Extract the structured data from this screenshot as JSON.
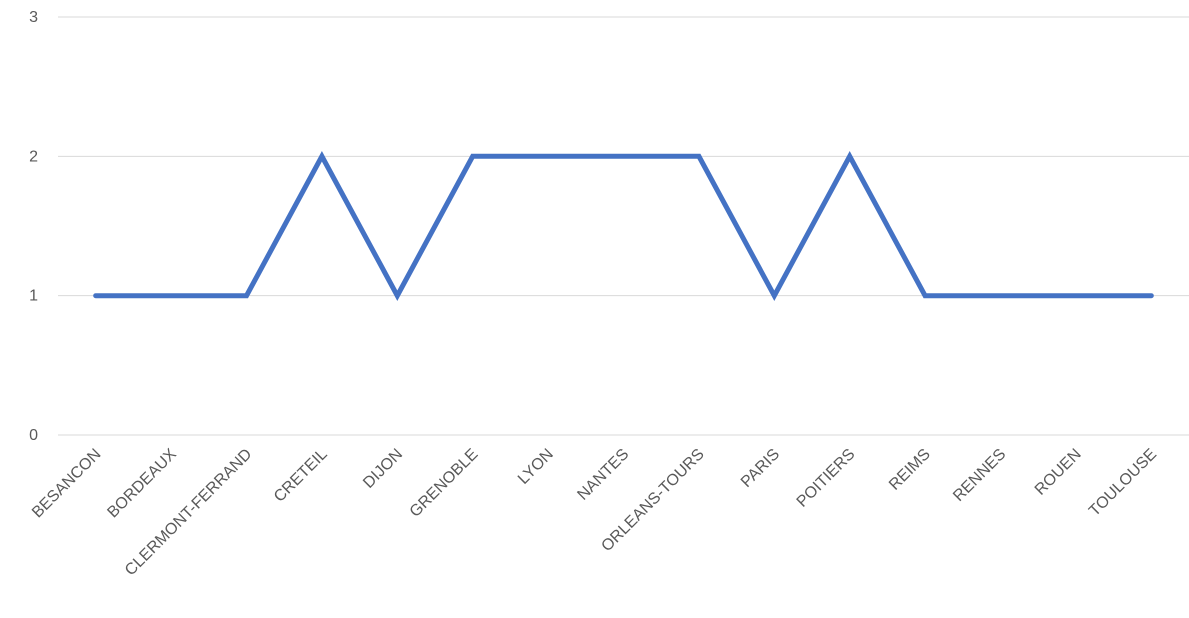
{
  "chart_data": {
    "type": "line",
    "title": "",
    "xlabel": "",
    "ylabel": "",
    "categories": [
      "BESANCON",
      "BORDEAUX",
      "CLERMONT-FERRAND",
      "CRETEIL",
      "DIJON",
      "GRENOBLE",
      "LYON",
      "NANTES",
      "ORLEANS-TOURS",
      "PARIS",
      "POITIERS",
      "REIMS",
      "RENNES",
      "ROUEN",
      "TOULOUSE"
    ],
    "series": [
      {
        "values": [
          1,
          1,
          1,
          2,
          1,
          2,
          2,
          2,
          2,
          1,
          2,
          1,
          1,
          1,
          1
        ],
        "color": "#4472C4"
      }
    ],
    "ylim": [
      0,
      3
    ],
    "yticks": [
      "0",
      "1",
      "2",
      "3"
    ],
    "grid": true,
    "gridline_color": "#D9D9D9",
    "legend": "none"
  }
}
